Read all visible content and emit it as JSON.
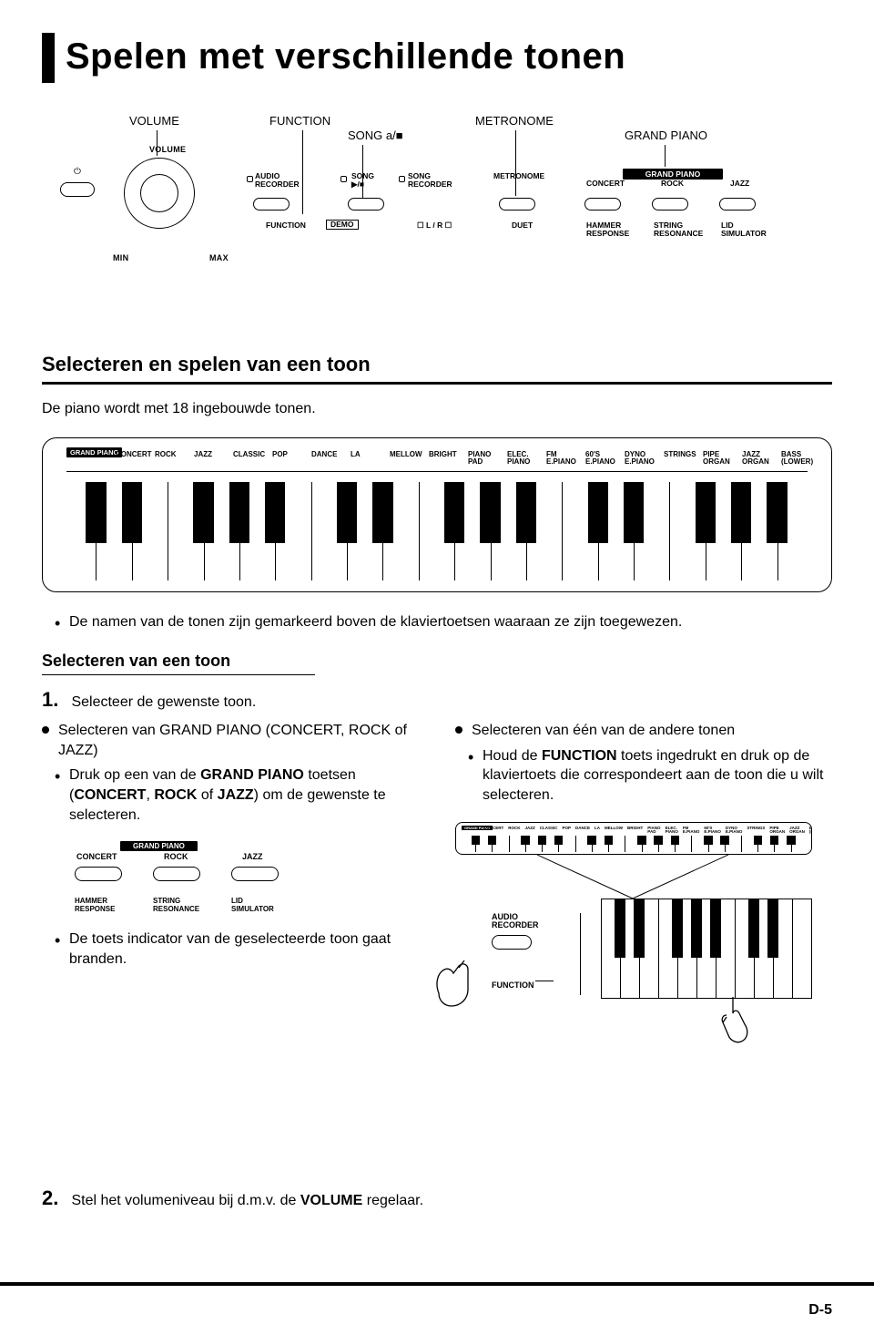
{
  "title": "Spelen met verschillende tonen",
  "callouts": {
    "volume": "VOLUME",
    "function": "FUNCTION",
    "song": "SONG a/■",
    "metronome": "METRONOME",
    "grand_piano": "GRAND PIANO"
  },
  "panel": {
    "volume_label": "VOLUME",
    "min": "MIN",
    "max": "MAX",
    "audio_recorder": "AUDIO\nRECORDER",
    "song_ps": "SONG\n▶/■",
    "song_recorder": "SONG\nRECORDER",
    "metronome": "METRONOME",
    "concert": "CONCERT",
    "rock": "ROCK",
    "jazz": "JAZZ",
    "grand_piano_bar": "GRAND PIANO",
    "function": "FUNCTION",
    "demo": "DEMO",
    "lr": "L / R",
    "duet": "DUET",
    "hammer_response": "HAMMER\nRESPONSE",
    "string_resonance": "STRING\nRESONANCE",
    "lid_simulator": "LID\nSIMULATOR"
  },
  "tone_strip": {
    "grand_piano": "GRAND PIANO",
    "labels": [
      "CONCERT",
      "ROCK",
      "JAZZ",
      "CLASSIC",
      "POP",
      "DANCE",
      "LA",
      "MELLOW",
      "BRIGHT",
      "PIANO\nPAD",
      "ELEC.\nPIANO",
      "FM\nE.PIANO",
      "60'S\nE.PIANO",
      "DYNO\nE.PIANO",
      "STRINGS",
      "PIPE\nORGAN",
      "JAZZ\nORGAN",
      "BASS\n(LOWER)"
    ]
  },
  "section1": {
    "heading": "Selecteren en spelen van een toon",
    "intro": "De piano wordt met 18 ingebouwde tonen.",
    "note": "De namen van de tonen zijn gemarkeerd boven de klaviertoetsen waaraan ze zijn toegewezen."
  },
  "section2": {
    "heading": "Selecteren van een toon",
    "step1": "Selecteer de gewenste toon.",
    "left_dot": "Selecteren van GRAND PIANO (CONCERT, ROCK of JAZZ)",
    "left_bul": "Druk op een van de GRAND PIANO toetsen (CONCERT, ROCK of JAZZ) om de gewenste te selecteren.",
    "right_dot": "Selecteren van één van de andere tonen",
    "right_bul": "Houd de FUNCTION toets ingedrukt en druk op de klaviertoets die correspondeert aan de toon die u wilt selecteren.",
    "left_bul2": "De toets indicator van de geselecteerde toon gaat branden.",
    "step2": "Stel het volumeniveau bij d.m.v. de VOLUME regelaar."
  },
  "gp_small": {
    "bar": "GRAND PIANO",
    "concert": "CONCERT",
    "rock": "ROCK",
    "jazz": "JAZZ",
    "hammer": "HAMMER\nRESPONSE",
    "string": "STRING\nRESONANCE",
    "lid": "LID\nSIMULATOR"
  },
  "func_box": {
    "audio_rec": "AUDIO\nRECORDER",
    "function": "FUNCTION"
  },
  "step_nums": {
    "one": "1.",
    "two": "2."
  },
  "page_num": "D-5"
}
